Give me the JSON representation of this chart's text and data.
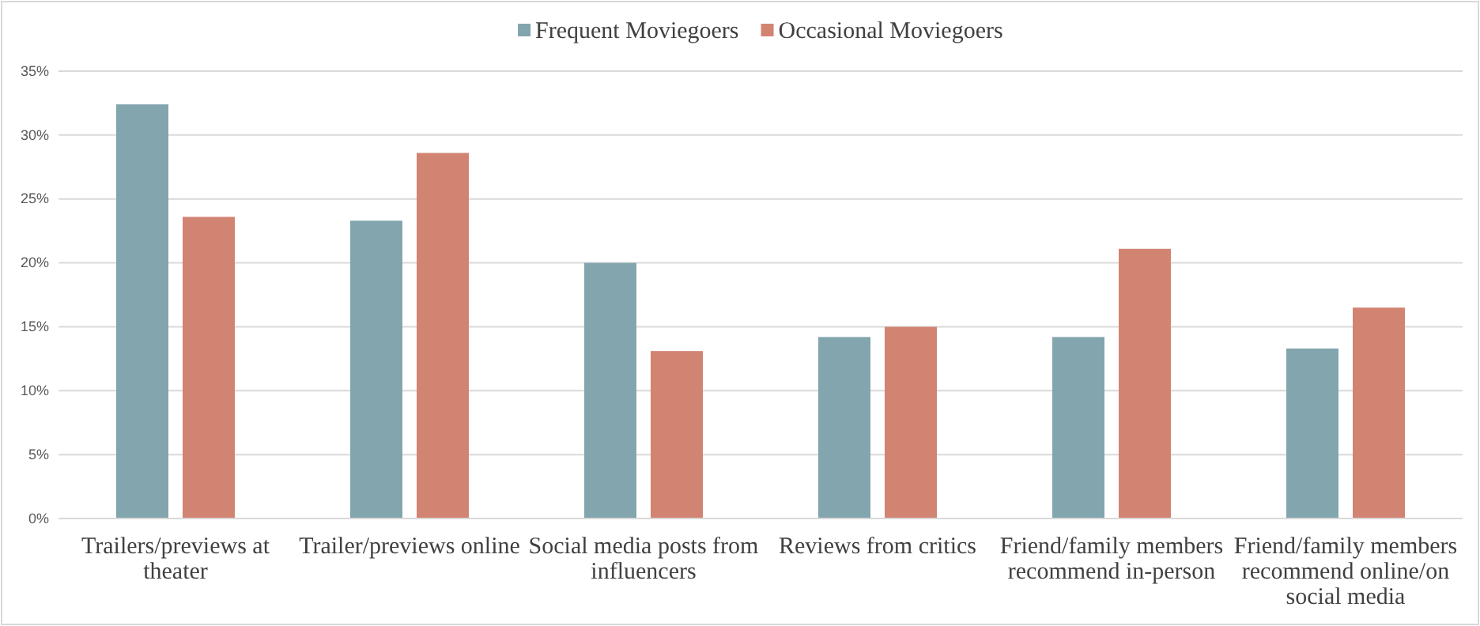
{
  "chart_data": {
    "type": "bar",
    "categories": [
      "Trailers/previews at theater",
      "Trailer/previews online",
      "Social media posts from influencers",
      "Reviews from critics",
      "Friend/family members recommend in-person",
      "Friend/family members recommend online/on social media"
    ],
    "series": [
      {
        "name": "Frequent Moviegoers",
        "color": "#82a5ae",
        "values": [
          32.4,
          23.3,
          20.0,
          14.2,
          14.2,
          13.3
        ]
      },
      {
        "name": "Occasional Moviegoers",
        "color": "#d28472",
        "values": [
          23.6,
          28.6,
          13.1,
          15.0,
          21.1,
          16.5
        ]
      }
    ],
    "ylim": [
      0,
      35
    ],
    "yticks": [
      {
        "value": 0,
        "label": "0%"
      },
      {
        "value": 5,
        "label": "5%"
      },
      {
        "value": 10,
        "label": "10%"
      },
      {
        "value": 15,
        "label": "15%"
      },
      {
        "value": 20,
        "label": "20%"
      },
      {
        "value": 25,
        "label": "25%"
      },
      {
        "value": 30,
        "label": "30%"
      },
      {
        "value": 35,
        "label": "35%"
      }
    ],
    "grid": "y",
    "legend": "top"
  }
}
